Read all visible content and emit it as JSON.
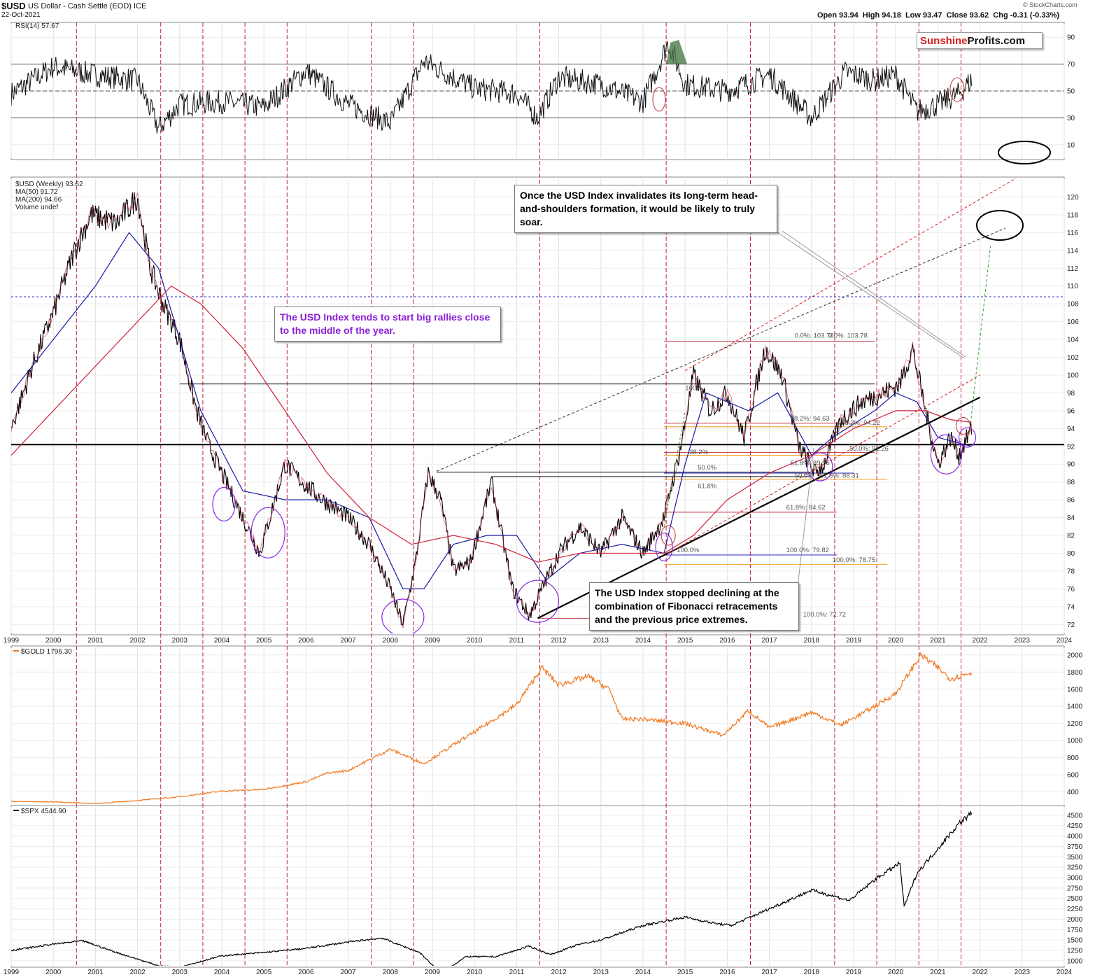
{
  "header": {
    "symbol": "$USD",
    "name": "US Dollar - Cash Settle (EOD) ICE",
    "date": "22-Oct-2021",
    "ohlc": "Open 93.94  High 94.18  Low 93.47  Close 93.62  Chg -0.31 (-0.33%)",
    "credit": "© StockCharts.com"
  },
  "logo": {
    "part1": "Sunshine",
    "part2": "Profits.com"
  },
  "annotations": {
    "rally_note": "The USD Index tends to start big rallies close to the middle of the year.",
    "hs_note": "Once the USD Index invalidates its long-term head-and-shoulders formation, it would be likely to truly soar.",
    "fib_note": "The USD Index stopped declining at the combination of Fibonacci retracements and the previous price extremes."
  },
  "colors": {
    "usd": "#000000",
    "ma50": "#1a1aa0",
    "ma200": "#d0203a",
    "gold": "#f07820",
    "spx": "#000000",
    "vline": "#c0204a",
    "ellipse": "#8a2be2"
  },
  "chart_data": [
    {
      "type": "line",
      "title": "RSI(14) 57.67",
      "legend": [
        "RSI(14) 57.67"
      ],
      "yticks": [
        10,
        30,
        50,
        70,
        90
      ],
      "ylim": [
        0,
        100
      ],
      "levels": [
        30,
        50,
        70
      ],
      "x": [
        1999.0,
        2000.0,
        2001.0,
        2002.0,
        2002.5,
        2003.0,
        2004.0,
        2005.0,
        2006.0,
        2007.0,
        2008.0,
        2008.8,
        2010.0,
        2011.0,
        2011.5,
        2012.0,
        2013.0,
        2014.0,
        2014.6,
        2015.0,
        2016.0,
        2017.0,
        2018.0,
        2018.8,
        2019.5,
        2020.0,
        2020.5,
        2021.0,
        2021.5,
        2021.8
      ],
      "values": [
        48,
        68,
        62,
        58,
        22,
        40,
        42,
        38,
        65,
        40,
        26,
        72,
        52,
        48,
        30,
        60,
        55,
        42,
        86,
        55,
        50,
        62,
        30,
        64,
        58,
        62,
        35,
        40,
        48,
        58
      ]
    },
    {
      "type": "line",
      "title": "$USD (Weekly) 93.62",
      "legend": [
        "$USD (Weekly) 93.62",
        "MA(50) 91.72",
        "MA(200) 94.66",
        "Volume undef"
      ],
      "xlabel": "",
      "ylabel": "",
      "xticks": [
        "1999",
        "2000",
        "2001",
        "2002",
        "2003",
        "2004",
        "2005",
        "2006",
        "2007",
        "2008",
        "2009",
        "2010",
        "2011",
        "2012",
        "2013",
        "2014",
        "2015",
        "2016",
        "2017",
        "2018",
        "2019",
        "2020",
        "2021",
        "2022",
        "2023",
        "2024"
      ],
      "yticks": [
        72,
        74,
        76,
        78,
        80,
        82,
        84,
        86,
        88,
        90,
        92,
        94,
        96,
        98,
        100,
        102,
        104,
        106,
        108,
        110,
        112,
        114,
        116,
        118,
        120
      ],
      "ylim": [
        71,
        122
      ],
      "series": [
        {
          "name": "$USD (Weekly)",
          "x": [
            1999.0,
            1999.5,
            2000.0,
            2000.5,
            2000.9,
            2001.5,
            2002.0,
            2002.3,
            2002.6,
            2003.0,
            2003.4,
            2003.7,
            2004.0,
            2004.3,
            2004.9,
            2005.5,
            2005.9,
            2006.4,
            2007.0,
            2007.5,
            2008.0,
            2008.3,
            2008.6,
            2008.9,
            2009.2,
            2009.5,
            2009.9,
            2010.4,
            2010.9,
            2011.3,
            2011.6,
            2012.0,
            2012.5,
            2013.0,
            2013.5,
            2014.0,
            2014.5,
            2014.9,
            2015.2,
            2015.6,
            2016.0,
            2016.4,
            2016.9,
            2017.3,
            2017.7,
            2018.1,
            2018.3,
            2018.7,
            2019.2,
            2019.7,
            2020.1,
            2020.4,
            2020.8,
            2021.0,
            2021.3,
            2021.5,
            2021.8
          ],
          "values": [
            94,
            101,
            107,
            114,
            118,
            117,
            120,
            112,
            108,
            104,
            96,
            92,
            89,
            86,
            80,
            90,
            88,
            86,
            84,
            81,
            76,
            72,
            79,
            89,
            86,
            78,
            79,
            88,
            76,
            73,
            76,
            80,
            83,
            80,
            84,
            80,
            84,
            92,
            100,
            96,
            98,
            93,
            103,
            100,
            92,
            89,
            90,
            95,
            97,
            98,
            99,
            103,
            94,
            90,
            93,
            91,
            94
          ]
        },
        {
          "name": "MA(50)",
          "x": [
            1999.0,
            2000.0,
            2001.0,
            2001.8,
            2002.5,
            2003.5,
            2004.5,
            2005.5,
            2006.5,
            2007.5,
            2008.3,
            2008.8,
            2009.5,
            2010.3,
            2011.0,
            2011.7,
            2012.5,
            2013.5,
            2014.5,
            2015.0,
            2015.5,
            2016.5,
            2017.2,
            2018.0,
            2018.5,
            2019.5,
            2020.0,
            2020.5,
            2021.0,
            2021.8
          ],
          "values": [
            98,
            104,
            110,
            116,
            112,
            96,
            87,
            86,
            86,
            84,
            76,
            76,
            81,
            82,
            82,
            77,
            80,
            81,
            80,
            90,
            98,
            96,
            98,
            91,
            93,
            96,
            98,
            97,
            93,
            92
          ]
        },
        {
          "name": "MA(200)",
          "x": [
            1999.0,
            2000.0,
            2001.0,
            2002.0,
            2002.8,
            2003.5,
            2004.5,
            2005.5,
            2006.5,
            2007.5,
            2008.5,
            2009.5,
            2010.5,
            2011.5,
            2012.5,
            2013.5,
            2014.5,
            2015.2,
            2016.0,
            2017.0,
            2018.0,
            2019.0,
            2020.0,
            2020.7,
            2021.3,
            2021.8
          ],
          "values": [
            91,
            96,
            101,
            106,
            110,
            108,
            103,
            96,
            89,
            84,
            81,
            82,
            81,
            79,
            80,
            80,
            80,
            82,
            86,
            89,
            91,
            94,
            96,
            96,
            95,
            94.7
          ]
        }
      ],
      "levels": [
        {
          "name": "Head-and-shoulders neckline",
          "value": 92.2
        },
        {
          "name": "Blue dotted resistance",
          "value": 108.8
        }
      ],
      "fibonacci_labels": [
        "0.0%: 103.78",
        "0.0%: 103.78",
        "100%",
        "38.2%: 94.63",
        "38.2%: 94.22",
        "50.0%: 91.26",
        "38.2%",
        "50.0%",
        "61.8%",
        "61.8%: 89.56",
        "50.0%",
        "61.8%: 88.31",
        "61.8%: 84.62",
        "100.0%",
        "100.0%: 79.82",
        "100.0%: 78.75",
        "100.0%: 72.72"
      ]
    },
    {
      "type": "line",
      "title": "$GOLD 1796.30",
      "legend": [
        "$GOLD 1796.30"
      ],
      "yticks": [
        400,
        600,
        800,
        1000,
        1200,
        1400,
        1600,
        1800,
        2000
      ],
      "ylim": [
        250,
        2080
      ],
      "x": [
        1999.0,
        2000.0,
        2001.0,
        2002.0,
        2003.0,
        2004.0,
        2005.0,
        2006.0,
        2006.5,
        2007.0,
        2008.0,
        2008.8,
        2009.5,
        2010.0,
        2011.0,
        2011.6,
        2012.0,
        2012.7,
        2013.2,
        2013.5,
        2014.0,
        2015.0,
        2015.9,
        2016.5,
        2017.0,
        2018.0,
        2018.7,
        2019.5,
        2020.0,
        2020.6,
        2021.0,
        2021.3,
        2021.8
      ],
      "values": [
        290,
        285,
        265,
        300,
        345,
        410,
        430,
        520,
        620,
        650,
        900,
        730,
        950,
        1100,
        1420,
        1850,
        1650,
        1750,
        1600,
        1250,
        1250,
        1200,
        1060,
        1350,
        1150,
        1330,
        1180,
        1400,
        1550,
        2000,
        1850,
        1720,
        1796
      ]
    },
    {
      "type": "line",
      "title": "$SPX 4544.90",
      "legend": [
        "$SPX 4544.90"
      ],
      "yticks": [
        1000,
        1250,
        1500,
        1750,
        2000,
        2250,
        2500,
        2750,
        3000,
        3250,
        3500,
        3750,
        4000,
        4250,
        4500
      ],
      "ylim": [
        880,
        4700
      ],
      "x": [
        1999.0,
        2000.0,
        2000.7,
        2001.5,
        2002.5,
        2003.0,
        2004.0,
        2005.0,
        2006.0,
        2007.0,
        2007.8,
        2008.3,
        2008.7,
        2009.2,
        2009.8,
        2010.5,
        2011.3,
        2011.8,
        2012.5,
        2013.0,
        2014.0,
        2015.0,
        2015.7,
        2016.1,
        2017.0,
        2018.0,
        2018.9,
        2019.5,
        2020.1,
        2020.2,
        2020.5,
        2021.0,
        2021.5,
        2021.8
      ],
      "values": [
        1250,
        1400,
        1480,
        1200,
        880,
        850,
        1120,
        1200,
        1300,
        1450,
        1550,
        1350,
        1200,
        700,
        1100,
        1100,
        1350,
        1150,
        1400,
        1500,
        1850,
        2050,
        1900,
        1850,
        2250,
        2700,
        2450,
        2950,
        3350,
        2300,
        3100,
        3700,
        4300,
        4545
      ]
    }
  ]
}
